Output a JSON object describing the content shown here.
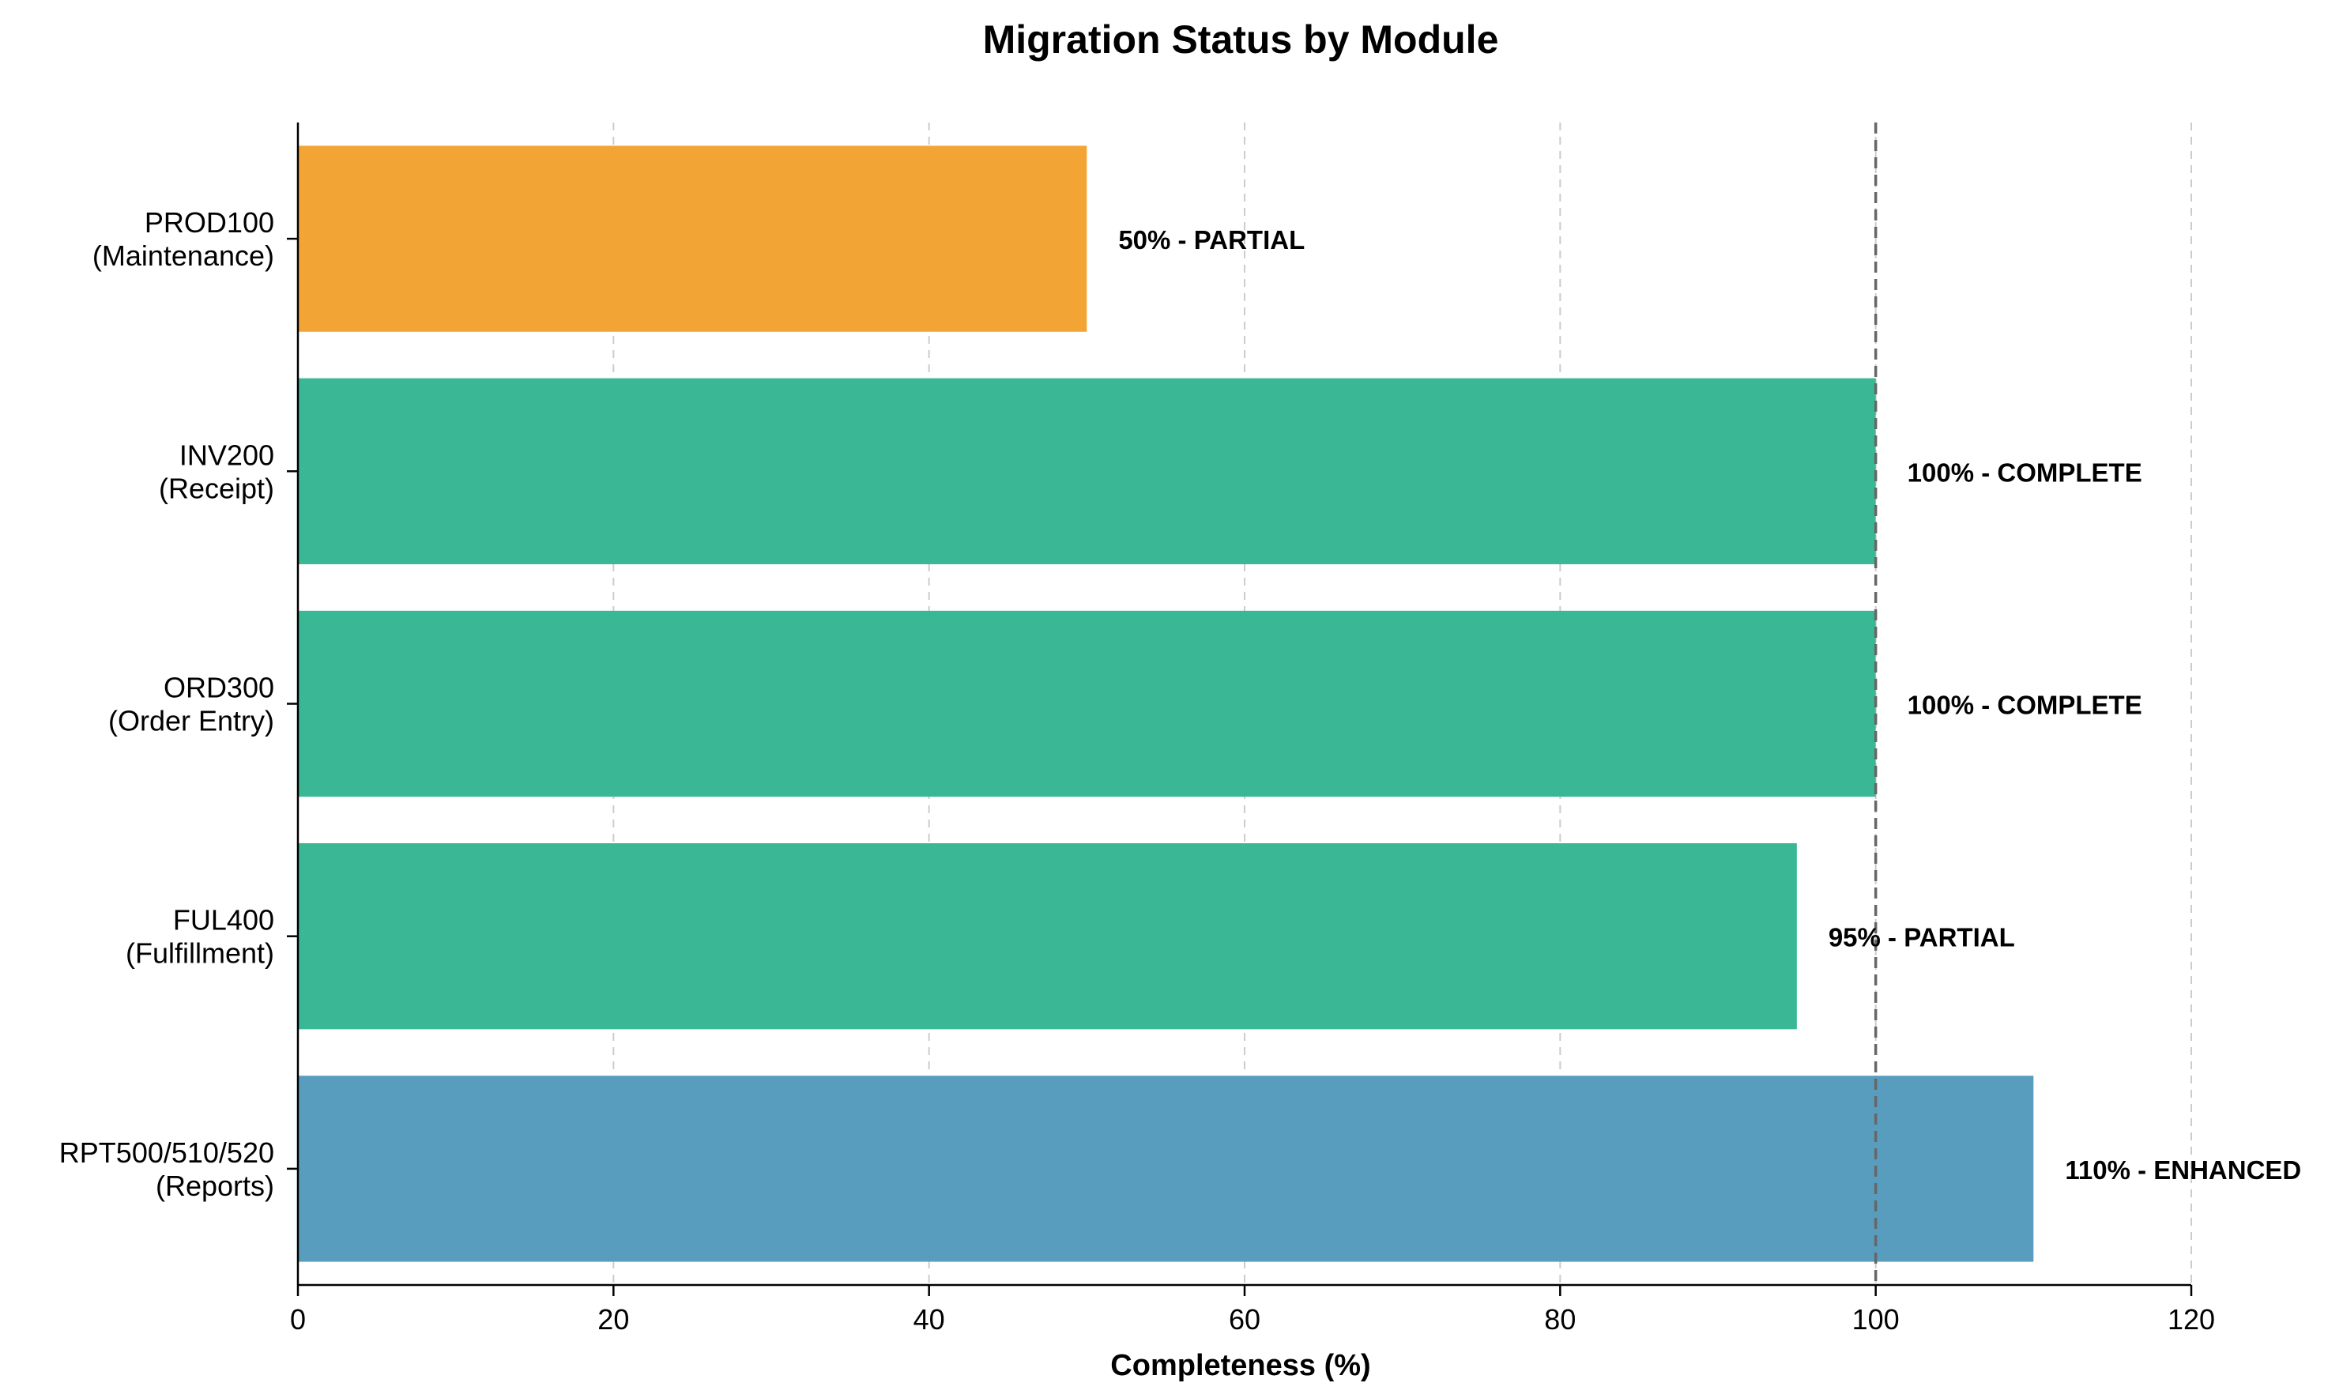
{
  "chart_data": {
    "type": "bar",
    "orientation": "horizontal",
    "title": "Migration Status by Module",
    "xlabel": "Completeness (%)",
    "ylabel": "",
    "xlim": [
      0,
      120
    ],
    "xticks": [
      0,
      20,
      40,
      60,
      80,
      100,
      120
    ],
    "grid": "x, dashed",
    "reference_line": {
      "x": 100,
      "style": "dashed"
    },
    "categories": [
      {
        "name": "PROD100",
        "desc": "(Maintenance)"
      },
      {
        "name": "INV200",
        "desc": "(Receipt)"
      },
      {
        "name": "ORD300",
        "desc": "(Order Entry)"
      },
      {
        "name": "FUL400",
        "desc": "(Fulfillment)"
      },
      {
        "name": "RPT500/510/520",
        "desc": "(Reports)"
      }
    ],
    "values": [
      50,
      100,
      100,
      95,
      110
    ],
    "labels": [
      "50% - PARTIAL",
      "100% - COMPLETE",
      "100% - COMPLETE",
      "95% - PARTIAL",
      "110% - ENHANCED"
    ],
    "colors": [
      "#F2A535",
      "#3AB795",
      "#3AB795",
      "#3AB795",
      "#589DBD"
    ]
  }
}
